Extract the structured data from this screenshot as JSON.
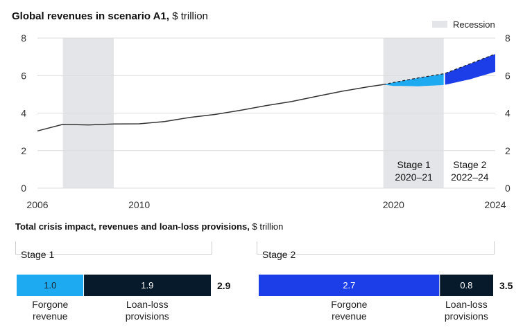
{
  "chart_data": [
    {
      "type": "line",
      "title": "Global revenues in scenario A1,",
      "unit": "$ trillion",
      "legend": {
        "label": "Recession",
        "color": "#e3e5e8",
        "placement": "top-right"
      },
      "x_ticks": [
        "2006",
        "2010",
        "2020",
        "2024"
      ],
      "y_ticks": [
        "0",
        "2",
        "4",
        "6",
        "8"
      ],
      "xlim": [
        2006,
        2024
      ],
      "ylim": [
        0,
        8
      ],
      "recessions": [
        [
          2007,
          2009
        ],
        [
          2019.6,
          2022
        ]
      ],
      "stages": [
        {
          "name": "Stage 1",
          "period": "2020–21"
        },
        {
          "name": "Stage 2",
          "period": "2022–24"
        }
      ],
      "series": [
        {
          "values": [
            [
              2006,
              3.05
            ],
            [
              2007,
              3.4
            ],
            [
              2008,
              3.37
            ],
            [
              2009,
              3.42
            ],
            [
              2010,
              3.43
            ],
            [
              2011,
              3.55
            ],
            [
              2012,
              3.77
            ],
            [
              2013,
              3.93
            ],
            [
              2014,
              4.15
            ],
            [
              2015,
              4.4
            ],
            [
              2016,
              4.62
            ],
            [
              2017,
              4.9
            ],
            [
              2018,
              5.17
            ],
            [
              2019,
              5.4
            ],
            [
              2019.6,
              5.52
            ]
          ]
        },
        {
          "style": "dashed",
          "values": [
            [
              2019.6,
              5.52
            ],
            [
              2020,
              5.63
            ],
            [
              2021,
              5.88
            ],
            [
              2022,
              6.1
            ],
            [
              2023,
              6.62
            ],
            [
              2024,
              7.15
            ]
          ]
        },
        {
          "values": [
            [
              2019.6,
              5.52
            ],
            [
              2020,
              5.45
            ],
            [
              2021,
              5.43
            ],
            [
              2022,
              5.5
            ],
            [
              2023,
              5.8
            ],
            [
              2024,
              6.2
            ]
          ]
        }
      ],
      "colors": {
        "stage1_gap": "#1eaaf0",
        "stage2_gap": "#1b3ee8",
        "line": "#333333"
      }
    },
    {
      "type": "bar",
      "title": "Total crisis impact, revenues and loan-loss provisions,",
      "unit": "$ trillion",
      "groups": [
        {
          "name": "Stage 1",
          "total": "2.9",
          "segments": [
            {
              "label_line1": "Forgone",
              "label_line2": "revenue",
              "value": 1.0,
              "display": "1.0",
              "color": "#1eaaf0",
              "text_color": "#1b2230"
            },
            {
              "label_line1": "Loan-loss",
              "label_line2": "provisions",
              "value": 1.9,
              "display": "1.9",
              "color": "#071a2b",
              "text_color": "#ffffff"
            }
          ]
        },
        {
          "name": "Stage 2",
          "total": "3.5",
          "segments": [
            {
              "label_line1": "Forgone",
              "label_line2": "revenue",
              "value": 2.7,
              "display": "2.7",
              "color": "#1b3ee8",
              "text_color": "#ffffff"
            },
            {
              "label_line1": "Loan-loss",
              "label_line2": "provisions",
              "value": 0.8,
              "display": "0.8",
              "color": "#071a2b",
              "text_color": "#ffffff"
            }
          ]
        }
      ]
    }
  ]
}
